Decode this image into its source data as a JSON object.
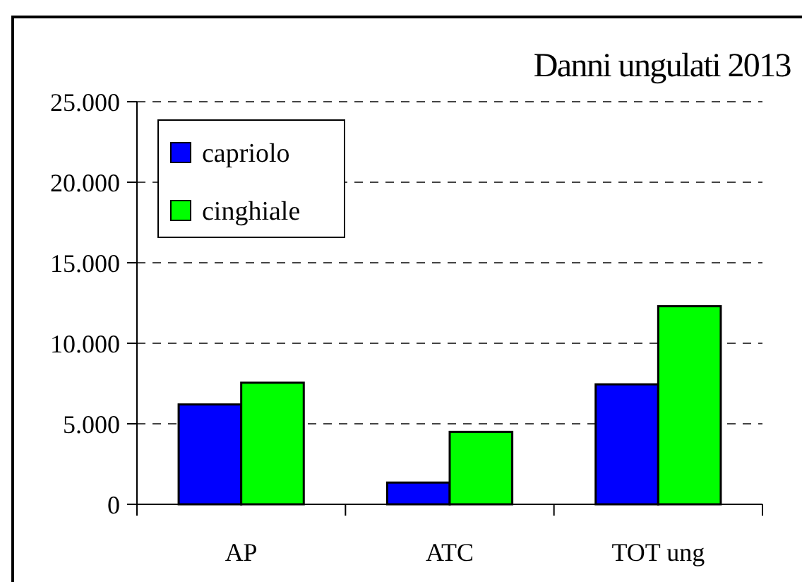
{
  "chart_data": {
    "type": "bar",
    "title": "Danni ungulati 2013",
    "categories": [
      "AP",
      "ATC",
      "TOT ung"
    ],
    "series": [
      {
        "name": "capriolo",
        "color": "#0000ff",
        "values": [
          6200,
          1350,
          7450
        ]
      },
      {
        "name": "cinghiale",
        "color": "#00ff00",
        "values": [
          7550,
          4500,
          12300
        ]
      }
    ],
    "ylim": [
      0,
      25000
    ],
    "yticks": [
      {
        "value": 0,
        "label": "0"
      },
      {
        "value": 5000,
        "label": "5.000"
      },
      {
        "value": 10000,
        "label": "10.000"
      },
      {
        "value": 15000,
        "label": "15.000"
      },
      {
        "value": 20000,
        "label": "20.000"
      },
      {
        "value": 25000,
        "label": "25.000"
      }
    ],
    "grid": "y",
    "legend": "top left"
  }
}
